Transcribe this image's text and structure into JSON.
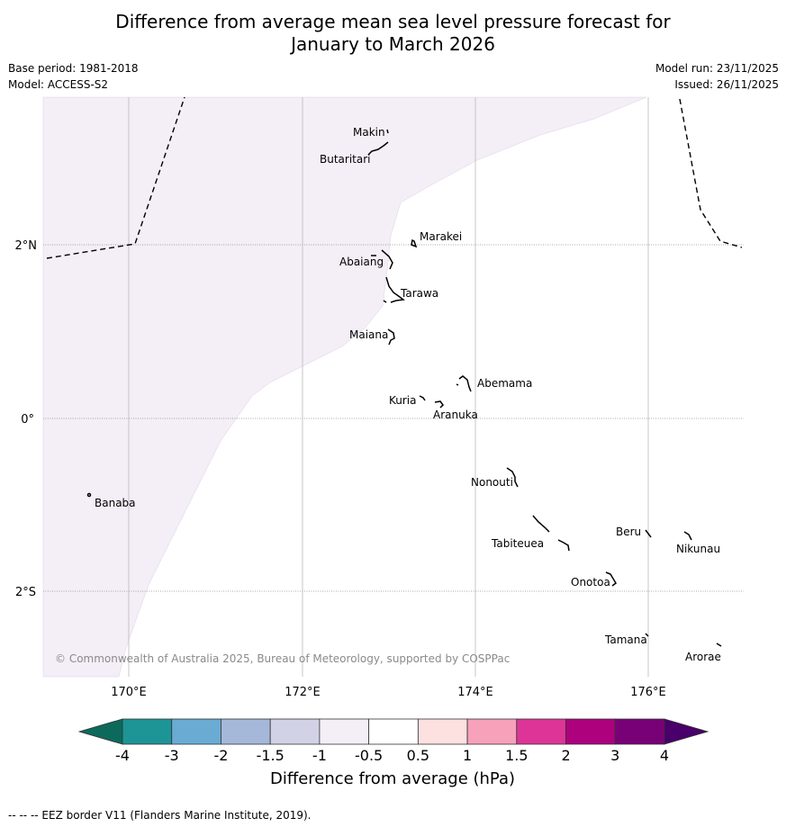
{
  "title_line1": "Difference from average mean sea level pressure forecast for",
  "title_line2": "January to March 2026",
  "meta": {
    "base_period": "Base period: 1981-2018",
    "model": "Model: ACCESS-S2",
    "model_run": "Model run: 23/11/2025",
    "issued": "Issued: 26/11/2025"
  },
  "map": {
    "lon_labels": [
      "170°E",
      "172°E",
      "174°E",
      "176°E"
    ],
    "lat_labels": [
      "2°N",
      "0°",
      "2°S"
    ],
    "islands": [
      "Makin",
      "Butaritari",
      "Marakei",
      "Abaiang",
      "Tarawa",
      "Maiana",
      "Abemama",
      "Kuria",
      "Aranuka",
      "Nonouti",
      "Banaba",
      "Beru",
      "Nikunau",
      "Tabiteuea",
      "Onotoa",
      "Tamana",
      "Arorae"
    ],
    "copyright": "© Commonwealth of Australia 2025, Bureau of Meteorology, supported by COSPPac",
    "shaded_band": "-1 to -0.5",
    "shading_color": "#f4eef7"
  },
  "colorbar": {
    "ticks": [
      "-4",
      "-3",
      "-2",
      "-1.5",
      "-1",
      "-0.5",
      "0.5",
      "1",
      "1.5",
      "2",
      "3",
      "4"
    ],
    "colors": [
      "#1d9496",
      "#6aabd4",
      "#a5b8da",
      "#d2d2e6",
      "#f4eef7",
      "#ffffff",
      "#fde0e0",
      "#f7a1bb",
      "#dd3597",
      "#ad017e",
      "#790177"
    ],
    "under_color": "#0b6a5c",
    "over_color": "#49006a",
    "label": "Difference from average (hPa)"
  },
  "footnote": "--  --  -- EEZ border V11 (Flanders Marine Institute, 2019)."
}
